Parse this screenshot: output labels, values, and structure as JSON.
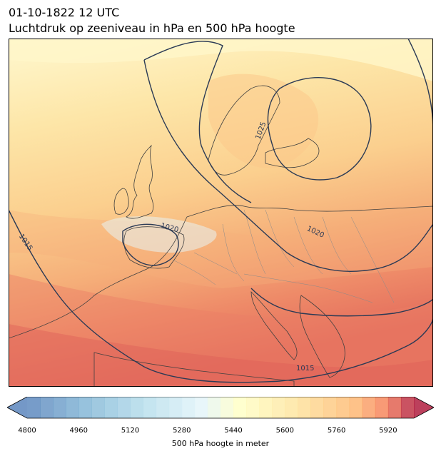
{
  "title": {
    "line1": "01-10-1822 12 UTC",
    "line2": "Luchtdruk op zeeniveau in hPa en 500 hPa hoogte"
  },
  "map": {
    "region": "Europe",
    "fill_field": "500 hPa geopotential height",
    "contour_field": "sea-level pressure",
    "isobar_labels": [
      "1025",
      "1020",
      "1020",
      "1015",
      "1015"
    ],
    "colors": {
      "coast": "#404040",
      "border": "#8a8a8a",
      "isobar": "#2b3a55"
    }
  },
  "colorbar": {
    "label": "500 hPa hoogte in meter",
    "ticks": [
      "4800",
      "4960",
      "5120",
      "5280",
      "5440",
      "5600",
      "5760",
      "5920"
    ],
    "min": 4800,
    "max": 6000,
    "step": 40,
    "extend": "both",
    "colormap": "RdYlBu_r (reversed red-yellow-blue)"
  }
}
